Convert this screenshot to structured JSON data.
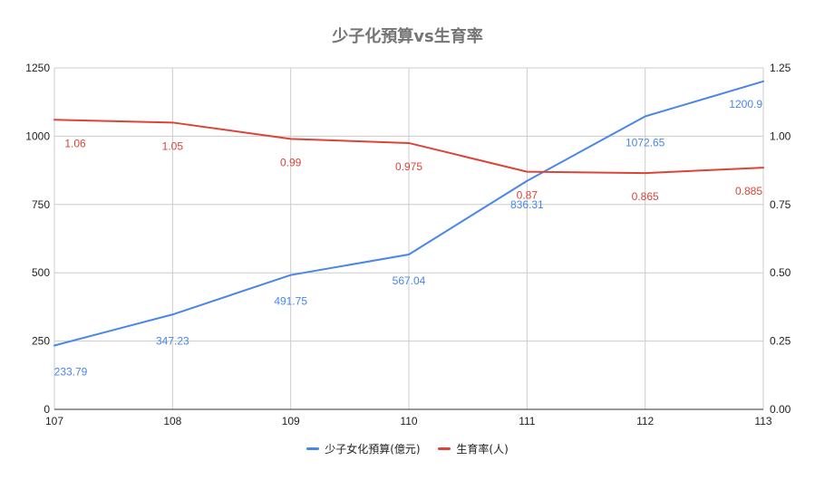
{
  "chart_data": {
    "type": "line",
    "title": "少子化預算vs生育率",
    "xlabel": "",
    "ylabel": "",
    "x": [
      "107",
      "108",
      "109",
      "110",
      "111",
      "112",
      "113"
    ],
    "x_tick_labels": [
      "107",
      "108",
      "109",
      "110",
      "111",
      "112",
      "113"
    ],
    "y_left": {
      "lim": [
        0,
        1250
      ],
      "ticks": [
        0,
        250,
        500,
        750,
        1000,
        1250
      ],
      "tick_labels": [
        "0",
        "250",
        "500",
        "750",
        "1000",
        "1250"
      ]
    },
    "y_right": {
      "lim": [
        0,
        1.25
      ],
      "ticks": [
        0,
        0.25,
        0.5,
        0.75,
        1.0,
        1.25
      ],
      "tick_labels": [
        "0.00",
        "0.25",
        "0.50",
        "0.75",
        "1.00",
        "1.25"
      ]
    },
    "grid": true,
    "legend_position": "bottom",
    "series": [
      {
        "name": "少子女化預算(億元)",
        "axis": "left",
        "color": "#4a86e8",
        "values": [
          233.79,
          347.23,
          491.75,
          567.04,
          836.31,
          1072.65,
          1200.9
        ],
        "labels": [
          "233.79",
          "347.23",
          "491.75",
          "567.04",
          "836.31",
          "1072.65",
          "1200.9"
        ]
      },
      {
        "name": "生育率(人)",
        "axis": "right",
        "color": "#db4437",
        "values": [
          1.06,
          1.05,
          0.99,
          0.975,
          0.87,
          0.865,
          0.885
        ],
        "labels": [
          "1.06",
          "1.05",
          "0.99",
          "0.975",
          "0.87",
          "0.865",
          "0.885"
        ]
      }
    ]
  }
}
